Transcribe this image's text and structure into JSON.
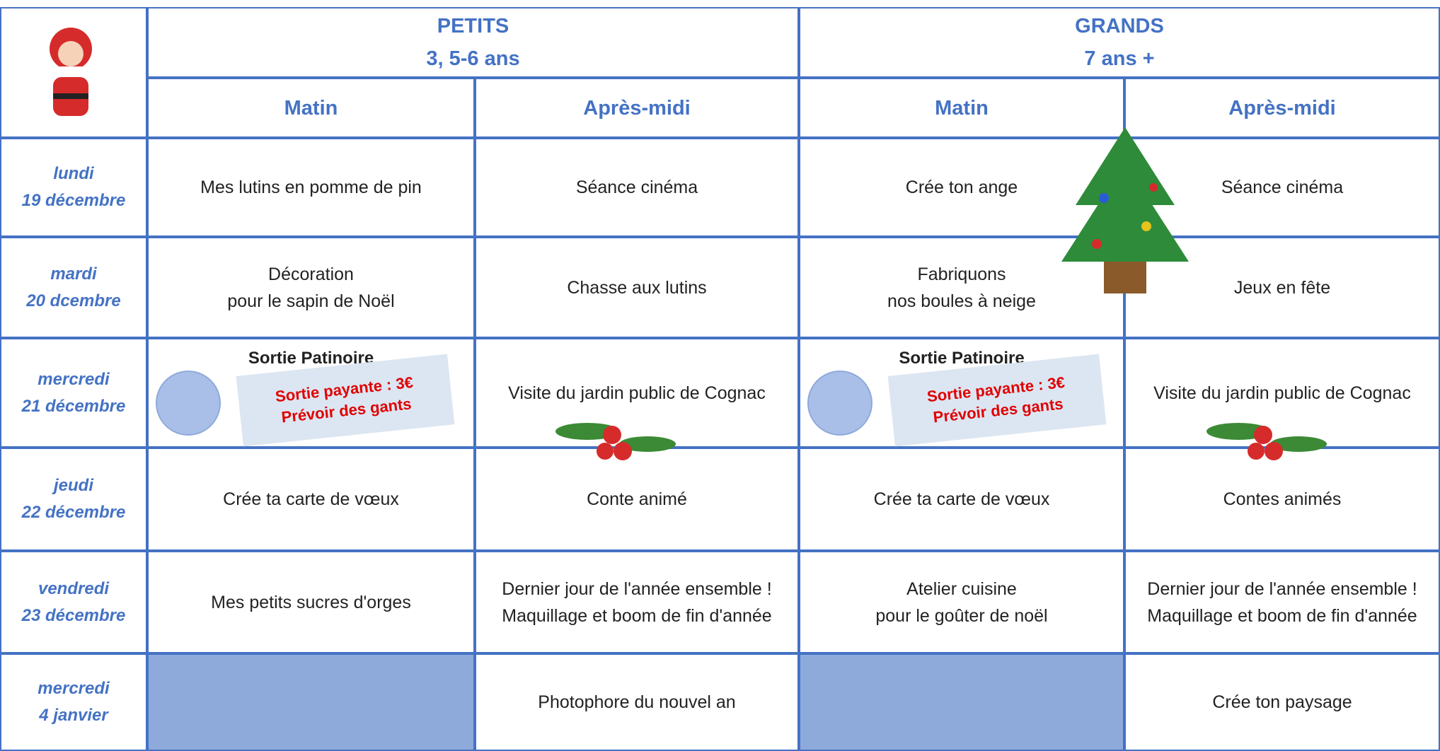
{
  "header": {
    "groups": [
      {
        "name": "PETITS",
        "ages": "3, 5-6 ans"
      },
      {
        "name": "GRANDS",
        "ages": "7 ans +"
      }
    ],
    "periods": [
      "Matin",
      "Après-midi",
      "Matin",
      "Après-midi"
    ]
  },
  "rows": [
    {
      "day": "lundi",
      "date": "19 décembre",
      "cells": [
        {
          "lines": [
            "Mes lutins en pomme de pin"
          ]
        },
        {
          "lines": [
            "Séance cinéma"
          ]
        },
        {
          "lines": [
            "Crée ton ange"
          ]
        },
        {
          "lines": [
            "Séance cinéma"
          ]
        }
      ]
    },
    {
      "day": "mardi",
      "date": "20 dcembre",
      "cells": [
        {
          "lines": [
            "Décoration",
            "pour le sapin de Noël"
          ]
        },
        {
          "lines": [
            "Chasse aux lutins"
          ]
        },
        {
          "lines": [
            "Fabriquons",
            "nos boules à neige"
          ]
        },
        {
          "lines": [
            "Jeux en fête"
          ]
        }
      ]
    },
    {
      "day": "mercredi",
      "date": "21 décembre",
      "cells": [
        {
          "title": "Sortie Patinoire",
          "note": [
            "Sortie payante : 3€",
            "Prévoir des gants"
          ]
        },
        {
          "lines": [
            "Visite du jardin public de Cognac"
          ]
        },
        {
          "title": "Sortie Patinoire",
          "note": [
            "Sortie payante : 3€",
            "Prévoir des gants"
          ]
        },
        {
          "lines": [
            "Visite du jardin public de Cognac"
          ]
        }
      ]
    },
    {
      "day": "jeudi",
      "date": "22 décembre",
      "cells": [
        {
          "lines": [
            "Crée ta carte de vœux"
          ]
        },
        {
          "lines": [
            "Conte animé"
          ]
        },
        {
          "lines": [
            "Crée ta carte de vœux"
          ]
        },
        {
          "lines": [
            "Contes animés"
          ]
        }
      ]
    },
    {
      "day": "vendredi",
      "date": "23 décembre",
      "cells": [
        {
          "lines": [
            "Mes petits sucres d'orges"
          ]
        },
        {
          "lines": [
            "Dernier jour de l'année ensemble !",
            "Maquillage et boom de fin d'année"
          ]
        },
        {
          "lines": [
            "Atelier cuisine",
            "pour le goûter de noël"
          ]
        },
        {
          "lines": [
            "Dernier jour de l'année ensemble !",
            "Maquillage et boom de fin d'année"
          ]
        }
      ]
    },
    {
      "day": "mercredi",
      "date": "4 janvier",
      "cells": [
        null,
        {
          "lines": [
            "Photophore du nouvel an"
          ]
        },
        null,
        {
          "lines": [
            "Crée ton paysage"
          ]
        }
      ]
    }
  ]
}
